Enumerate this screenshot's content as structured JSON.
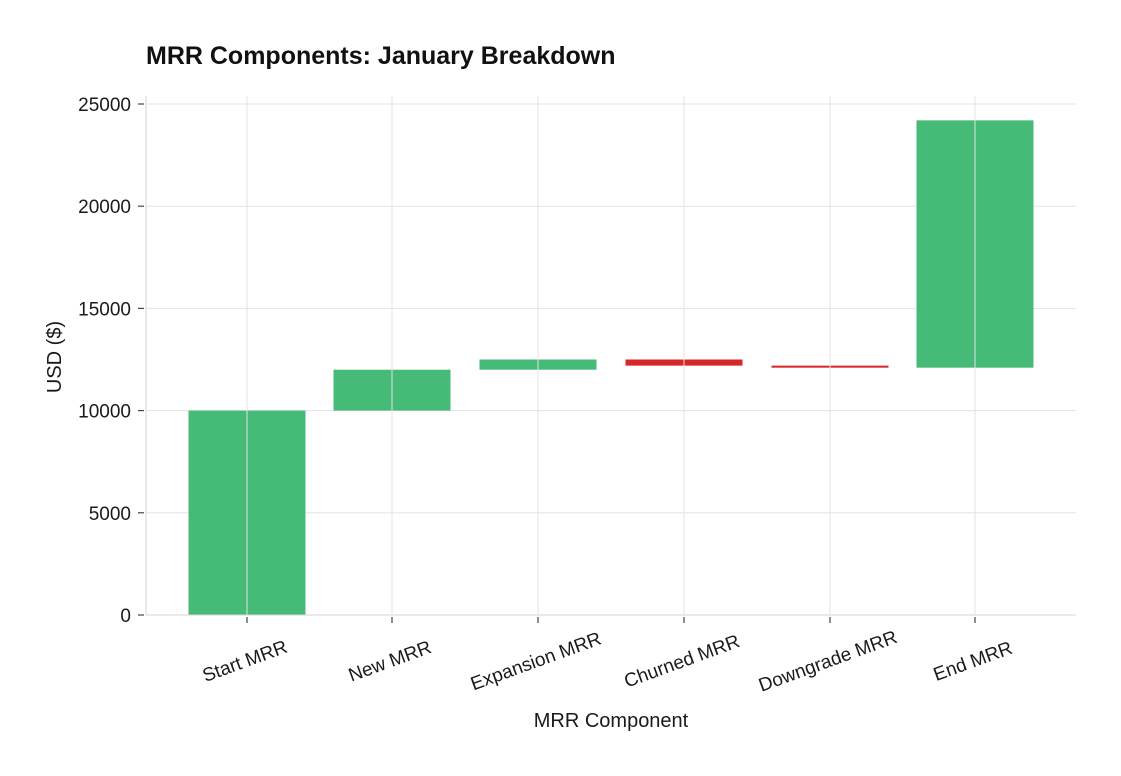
{
  "chart_data": {
    "type": "bar",
    "subtype": "waterfall",
    "title": "MRR Components: January Breakdown",
    "xlabel": "MRR Component",
    "ylabel": "USD ($)",
    "ylim": [
      0,
      25000
    ],
    "yticks": [
      0,
      5000,
      10000,
      15000,
      20000,
      25000
    ],
    "grid": true,
    "categories": [
      "Start MRR",
      "New MRR",
      "Expansion MRR",
      "Churned MRR",
      "Downgrade MRR",
      "End MRR"
    ],
    "bars": [
      {
        "label": "Start MRR",
        "base": 0,
        "value": 10000,
        "color": "#45bb77"
      },
      {
        "label": "New MRR",
        "base": 10000,
        "value": 2000,
        "color": "#45bb77"
      },
      {
        "label": "Expansion MRR",
        "base": 12000,
        "value": 500,
        "color": "#45bb77"
      },
      {
        "label": "Churned MRR",
        "base": 12500,
        "value": -300,
        "color": "#d62728"
      },
      {
        "label": "Downgrade MRR",
        "base": 12200,
        "value": -100,
        "color": "#d62728"
      },
      {
        "label": "End MRR",
        "base": 12100,
        "value": 12100,
        "color": "#45bb77"
      }
    ],
    "colors": {
      "positive": "#45bb77",
      "negative": "#d62728"
    }
  }
}
